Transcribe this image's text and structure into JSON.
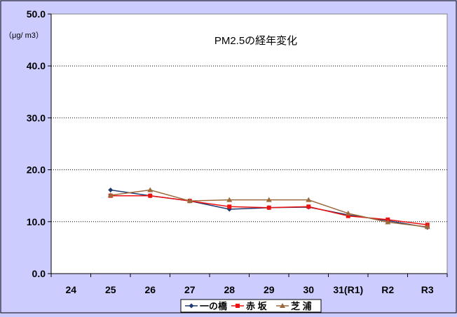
{
  "chart_data": {
    "type": "line",
    "title": "PM2.5の経年変化",
    "ylabel": "（μg/ m3）",
    "categories": [
      "24",
      "25",
      "26",
      "27",
      "28",
      "29",
      "30",
      "31(R1)",
      "R2",
      "R3"
    ],
    "ylim": [
      0,
      50
    ],
    "yticks": [
      "0.0",
      "10.0",
      "20.0",
      "30.0",
      "40.0",
      "50.0"
    ],
    "grid": "horizontal dotted at 10.0, 20.0, 30.0",
    "legend_position": "bottom",
    "series": [
      {
        "name": "一の橋",
        "color": "#1f3a6e",
        "marker": "diamond",
        "values": [
          null,
          16.1,
          15.0,
          14.0,
          12.4,
          12.7,
          12.8,
          11.3,
          10.2,
          8.9
        ]
      },
      {
        "name": "赤 坂",
        "color": "#ee1111",
        "marker": "square",
        "values": [
          null,
          15.0,
          15.0,
          14.0,
          12.9,
          12.7,
          12.9,
          11.1,
          10.4,
          9.4
        ]
      },
      {
        "name": "芝 浦",
        "color": "#9b6a3c",
        "marker": "triangle",
        "values": [
          null,
          15.1,
          16.1,
          14.0,
          14.2,
          14.2,
          14.2,
          11.6,
          9.9,
          9.0
        ]
      }
    ]
  }
}
